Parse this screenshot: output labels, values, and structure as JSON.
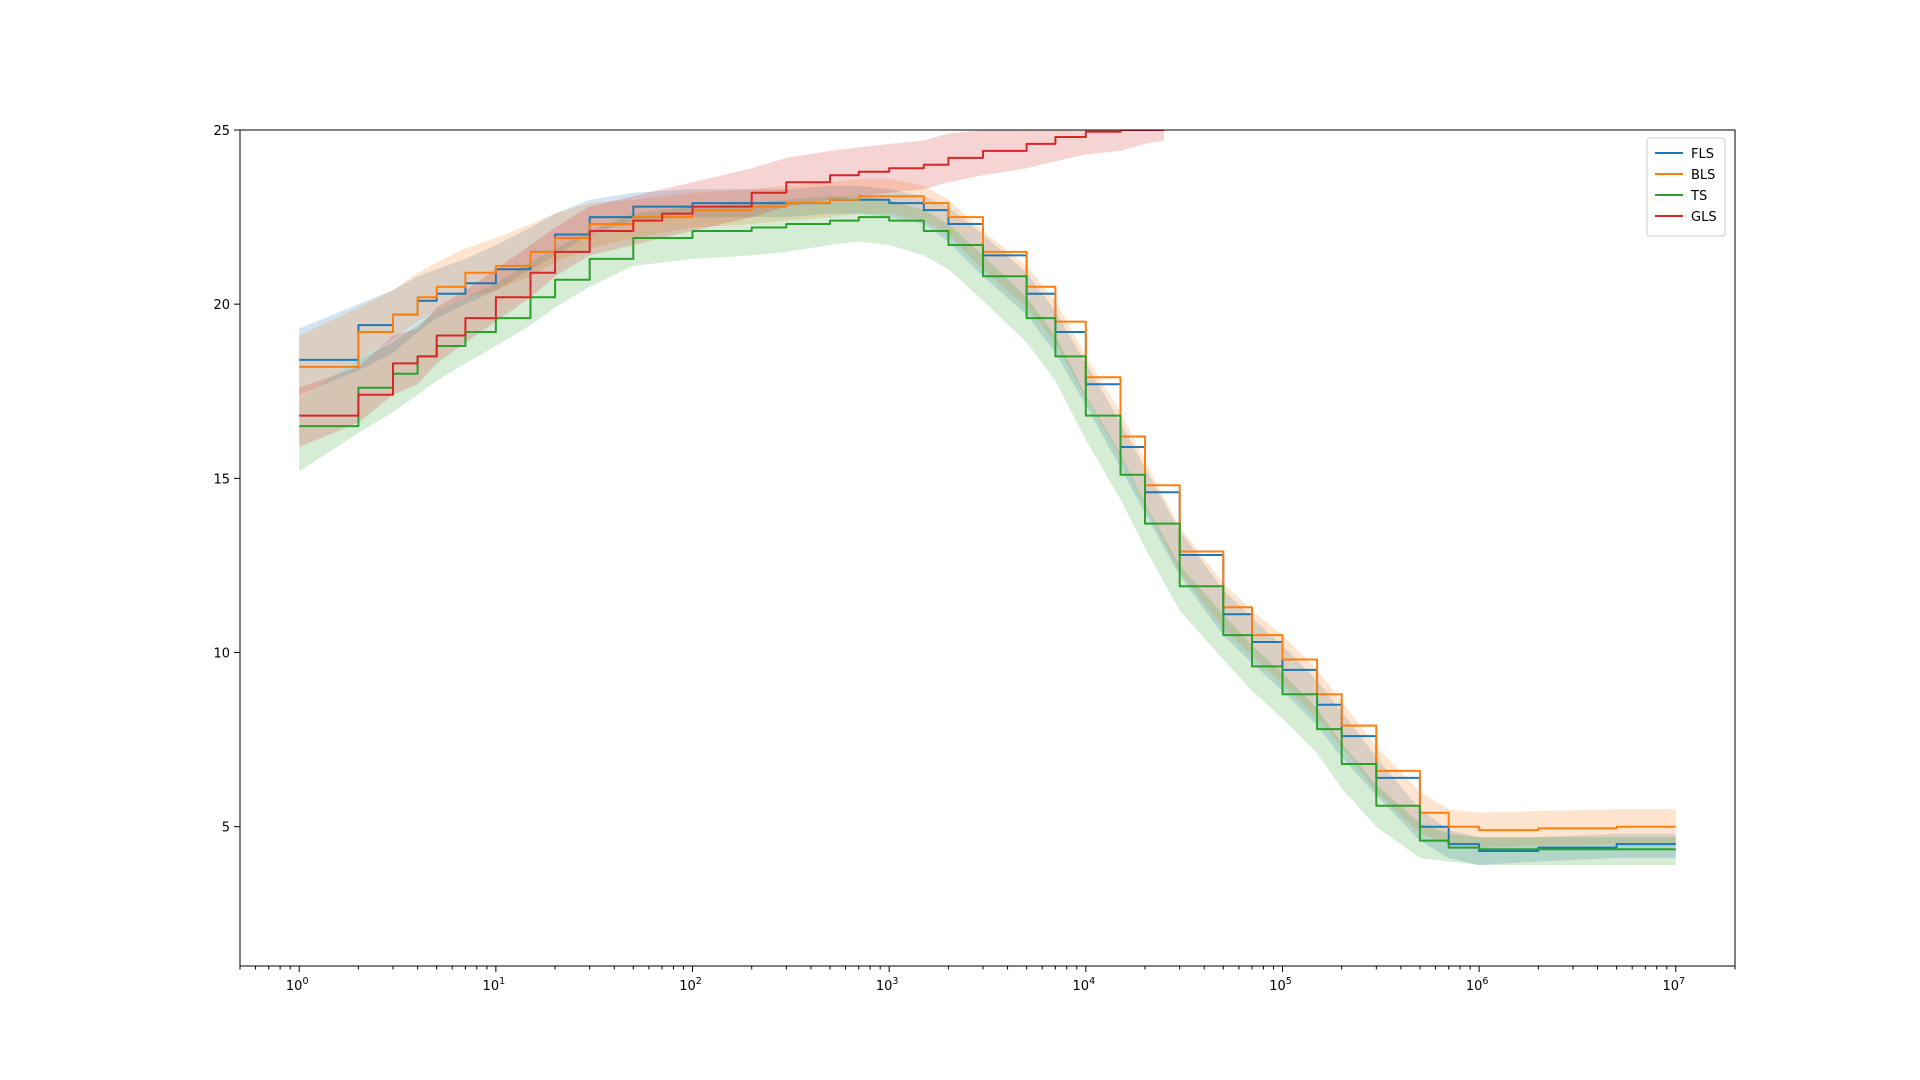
{
  "chart_data": {
    "type": "line",
    "title": "",
    "xlabel": "",
    "ylabel": "",
    "xscale": "log",
    "xlim": [
      0.5,
      20000000
    ],
    "ylim": [
      1,
      25
    ],
    "x_ticks": [
      {
        "value": 1,
        "base": "10",
        "exp": "0"
      },
      {
        "value": 10,
        "base": "10",
        "exp": "1"
      },
      {
        "value": 100,
        "base": "10",
        "exp": "2"
      },
      {
        "value": 1000,
        "base": "10",
        "exp": "3"
      },
      {
        "value": 10000,
        "base": "10",
        "exp": "4"
      },
      {
        "value": 100000,
        "base": "10",
        "exp": "5"
      },
      {
        "value": 1000000,
        "base": "10",
        "exp": "6"
      },
      {
        "value": 10000000,
        "base": "10",
        "exp": "7"
      }
    ],
    "y_ticks": [
      {
        "value": 5,
        "label": "5"
      },
      {
        "value": 10,
        "label": "10"
      },
      {
        "value": 15,
        "label": "15"
      },
      {
        "value": 20,
        "label": "20"
      },
      {
        "value": 25,
        "label": "25"
      }
    ],
    "grid": false,
    "legend_position": "top-right",
    "series": [
      {
        "name": "FLS",
        "color": "#1f77b4",
        "x": [
          1,
          2,
          3,
          4,
          5,
          7,
          10,
          15,
          20,
          30,
          50,
          100,
          200,
          300,
          500,
          700,
          1000,
          1500,
          2000,
          3000,
          5000,
          7000,
          10000,
          15000,
          20000,
          30000,
          50000,
          70000,
          100000,
          150000,
          200000,
          300000,
          500000,
          700000,
          1000000,
          2000000,
          5000000,
          10000000
        ],
        "values": [
          18.4,
          19.4,
          19.7,
          20.1,
          20.3,
          20.6,
          21.0,
          21.5,
          22.0,
          22.5,
          22.8,
          22.9,
          22.9,
          22.9,
          23.0,
          23.0,
          22.9,
          22.7,
          22.3,
          21.4,
          20.3,
          19.2,
          17.7,
          15.9,
          14.6,
          12.8,
          11.1,
          10.3,
          9.5,
          8.5,
          7.6,
          6.4,
          5.0,
          4.5,
          4.3,
          4.4,
          4.5,
          4.5
        ],
        "upper": [
          19.3,
          20.0,
          20.4,
          20.8,
          21.0,
          21.3,
          21.7,
          22.2,
          22.6,
          23.0,
          23.2,
          23.3,
          23.3,
          23.3,
          23.4,
          23.4,
          23.3,
          23.1,
          22.8,
          22.0,
          20.9,
          19.8,
          18.3,
          16.6,
          15.3,
          13.5,
          11.8,
          11.0,
          10.2,
          9.2,
          8.3,
          7.0,
          5.5,
          4.9,
          4.7,
          4.7,
          4.8,
          4.8
        ],
        "lower": [
          17.4,
          18.1,
          18.6,
          19.2,
          19.6,
          20.0,
          20.4,
          21.0,
          21.4,
          22.0,
          22.4,
          22.5,
          22.5,
          22.5,
          22.6,
          22.6,
          22.5,
          22.3,
          21.8,
          20.8,
          19.7,
          18.6,
          17.1,
          15.3,
          14.0,
          12.2,
          10.5,
          9.7,
          8.9,
          7.9,
          7.0,
          5.9,
          4.6,
          4.1,
          3.9,
          4.0,
          4.1,
          4.1
        ]
      },
      {
        "name": "BLS",
        "color": "#ff7f0e",
        "x": [
          1,
          2,
          3,
          4,
          5,
          7,
          10,
          15,
          20,
          30,
          50,
          100,
          200,
          300,
          500,
          700,
          1000,
          1500,
          2000,
          3000,
          5000,
          7000,
          10000,
          15000,
          20000,
          30000,
          50000,
          70000,
          100000,
          150000,
          200000,
          300000,
          500000,
          700000,
          1000000,
          2000000,
          5000000,
          10000000
        ],
        "values": [
          18.2,
          19.2,
          19.7,
          20.2,
          20.5,
          20.9,
          21.1,
          21.5,
          21.9,
          22.3,
          22.5,
          22.7,
          22.8,
          22.9,
          23.0,
          23.1,
          23.1,
          22.9,
          22.5,
          21.5,
          20.5,
          19.5,
          17.9,
          16.2,
          14.8,
          12.9,
          11.3,
          10.5,
          9.8,
          8.8,
          7.9,
          6.6,
          5.4,
          5.0,
          4.9,
          4.95,
          5.0,
          5.0
        ],
        "upper": [
          19.1,
          19.9,
          20.4,
          20.9,
          21.2,
          21.6,
          21.9,
          22.3,
          22.6,
          22.9,
          23.0,
          23.2,
          23.3,
          23.4,
          23.5,
          23.6,
          23.6,
          23.4,
          23.0,
          22.1,
          21.1,
          20.1,
          18.5,
          16.9,
          15.5,
          13.6,
          12.0,
          11.2,
          10.5,
          9.5,
          8.6,
          7.3,
          6.0,
          5.5,
          5.4,
          5.45,
          5.5,
          5.5
        ],
        "lower": [
          17.3,
          18.4,
          19.0,
          19.5,
          19.8,
          20.2,
          20.4,
          20.8,
          21.2,
          21.6,
          21.9,
          22.2,
          22.3,
          22.4,
          22.5,
          22.6,
          22.6,
          22.4,
          22.0,
          21.0,
          19.9,
          18.9,
          17.3,
          15.6,
          14.2,
          12.3,
          10.7,
          9.9,
          9.1,
          8.1,
          7.3,
          6.0,
          4.8,
          4.5,
          4.4,
          4.45,
          4.5,
          4.5
        ]
      },
      {
        "name": "TS",
        "color": "#2ca02c",
        "x": [
          1,
          2,
          3,
          4,
          5,
          7,
          10,
          15,
          20,
          30,
          50,
          100,
          200,
          300,
          500,
          700,
          1000,
          1500,
          2000,
          3000,
          5000,
          7000,
          10000,
          15000,
          20000,
          30000,
          50000,
          70000,
          100000,
          150000,
          200000,
          300000,
          500000,
          700000,
          1000000,
          2000000,
          5000000,
          10000000
        ],
        "values": [
          16.5,
          17.6,
          18.0,
          18.5,
          18.8,
          19.2,
          19.6,
          20.2,
          20.7,
          21.3,
          21.9,
          22.1,
          22.2,
          22.3,
          22.4,
          22.5,
          22.4,
          22.1,
          21.7,
          20.8,
          19.6,
          18.5,
          16.8,
          15.1,
          13.7,
          11.9,
          10.5,
          9.6,
          8.8,
          7.8,
          6.8,
          5.6,
          4.6,
          4.4,
          4.35,
          4.35,
          4.35,
          4.35
        ],
        "upper": [
          17.3,
          18.4,
          18.9,
          19.4,
          19.8,
          20.2,
          20.6,
          21.2,
          21.6,
          22.1,
          22.6,
          22.8,
          22.9,
          23.0,
          23.1,
          23.1,
          23.0,
          22.7,
          22.3,
          21.4,
          20.2,
          19.1,
          17.4,
          15.7,
          14.3,
          12.5,
          11.1,
          10.2,
          9.4,
          8.4,
          7.4,
          6.2,
          5.1,
          4.8,
          4.7,
          4.7,
          4.7,
          4.7
        ],
        "lower": [
          15.2,
          16.3,
          16.9,
          17.4,
          17.8,
          18.3,
          18.8,
          19.4,
          19.9,
          20.5,
          21.1,
          21.3,
          21.4,
          21.5,
          21.7,
          21.8,
          21.7,
          21.4,
          21.0,
          20.1,
          18.9,
          17.8,
          16.1,
          14.4,
          13.0,
          11.2,
          9.8,
          8.9,
          8.1,
          7.1,
          6.1,
          5.0,
          4.1,
          4.0,
          3.9,
          3.9,
          3.9,
          3.9
        ]
      },
      {
        "name": "GLS",
        "color": "#d62728",
        "x": [
          1,
          2,
          3,
          4,
          5,
          7,
          10,
          15,
          20,
          30,
          50,
          70,
          100,
          200,
          300,
          500,
          700,
          1000,
          1500,
          2000,
          3000,
          5000,
          7000,
          10000,
          15000,
          20000,
          25000
        ],
        "values": [
          16.8,
          17.4,
          18.3,
          18.5,
          19.1,
          19.6,
          20.2,
          20.9,
          21.5,
          22.1,
          22.4,
          22.6,
          22.8,
          23.2,
          23.5,
          23.7,
          23.8,
          23.9,
          24.0,
          24.2,
          24.4,
          24.6,
          24.8,
          24.95,
          25.0,
          25.0,
          25.0
        ],
        "upper": [
          17.6,
          18.2,
          19.1,
          19.3,
          19.9,
          20.4,
          21.0,
          21.7,
          22.2,
          22.8,
          23.1,
          23.3,
          23.5,
          23.9,
          24.2,
          24.4,
          24.5,
          24.6,
          24.7,
          24.9,
          25.0,
          25.0,
          25.0,
          25.0,
          25.0,
          25.0,
          25.0
        ],
        "lower": [
          15.9,
          16.6,
          17.4,
          17.7,
          18.3,
          18.9,
          19.5,
          20.2,
          20.8,
          21.4,
          21.7,
          21.9,
          22.1,
          22.5,
          22.8,
          23.0,
          23.1,
          23.2,
          23.3,
          23.5,
          23.7,
          23.9,
          24.1,
          24.3,
          24.4,
          24.6,
          24.7
        ]
      }
    ]
  }
}
